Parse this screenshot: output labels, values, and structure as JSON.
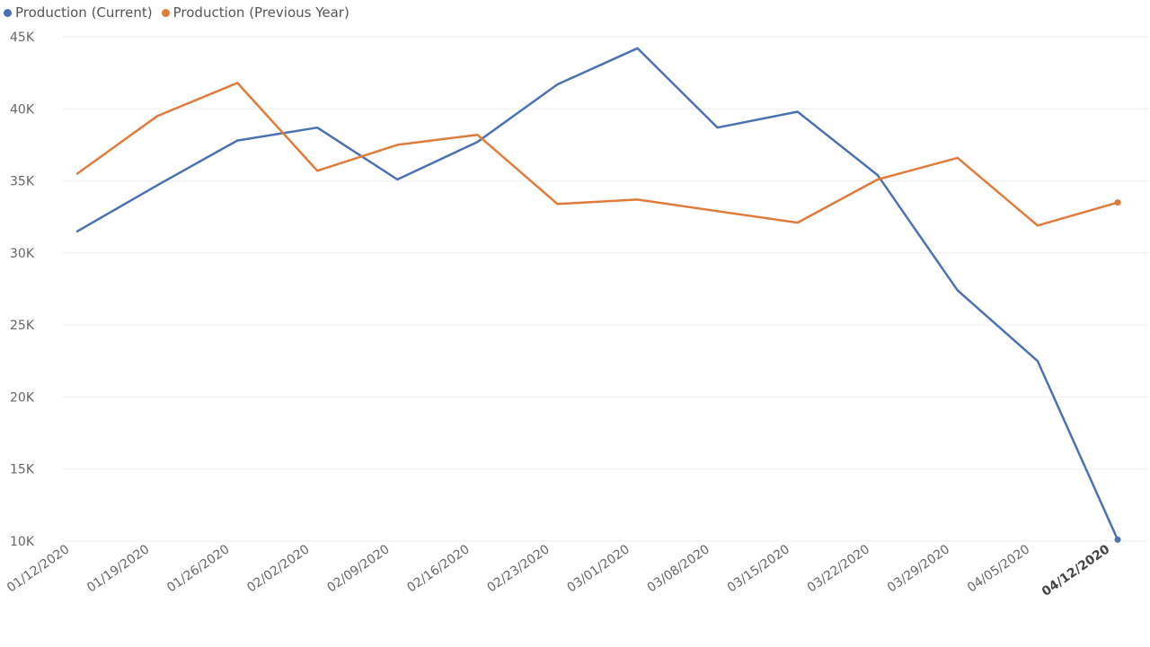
{
  "chart_data": {
    "type": "line",
    "title": "",
    "xlabel": "",
    "ylabel": "",
    "ylim": [
      10000,
      45000
    ],
    "y_ticks": [
      {
        "value": 10000,
        "label": "10K"
      },
      {
        "value": 15000,
        "label": "15K"
      },
      {
        "value": 20000,
        "label": "20K"
      },
      {
        "value": 25000,
        "label": "25K"
      },
      {
        "value": 30000,
        "label": "30K"
      },
      {
        "value": 35000,
        "label": "35K"
      },
      {
        "value": 40000,
        "label": "40K"
      },
      {
        "value": 45000,
        "label": "45K"
      }
    ],
    "categories": [
      "01/12/2020",
      "01/19/2020",
      "01/26/2020",
      "02/02/2020",
      "02/09/2020",
      "02/16/2020",
      "02/23/2020",
      "03/01/2020",
      "03/08/2020",
      "03/15/2020",
      "03/22/2020",
      "03/29/2020",
      "04/05/2020",
      "04/12/2020"
    ],
    "highlighted_category": "04/12/2020",
    "grid": true,
    "legend_position": "top-left",
    "series": [
      {
        "name": "Production (Current)",
        "color": "#4a72b2",
        "values": [
          31500,
          34700,
          37800,
          38700,
          35100,
          37700,
          41700,
          44200,
          38700,
          39800,
          35400,
          27400,
          22500,
          10100
        ]
      },
      {
        "name": "Production (Previous Year)",
        "color": "#e07b39",
        "values": [
          35500,
          39500,
          41800,
          35700,
          37500,
          38200,
          33400,
          33700,
          32900,
          32100,
          35100,
          36600,
          31900,
          33500
        ]
      }
    ]
  }
}
